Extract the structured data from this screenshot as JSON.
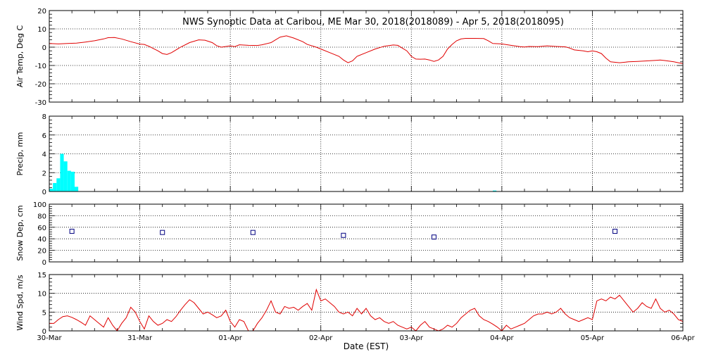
{
  "title": "NWS Synoptic Data at Caribou, ME   Mar 30, 2018(2018089) - Apr  5, 2018(2018095)",
  "xlabel": "Date (EST)",
  "x_ticks": [
    "30-Mar",
    "31-Mar",
    "01-Apr",
    "02-Apr",
    "03-Apr",
    "04-Apr",
    "05-Apr",
    "06-Apr"
  ],
  "colors": {
    "line": "#e00000",
    "bar": "#00ffff",
    "marker": "#000080",
    "axis": "#000000"
  },
  "chart_data": [
    {
      "type": "line",
      "ylabel": "Air Temp, Deg C",
      "ylim": [
        -30,
        20
      ],
      "yticks": [
        -30,
        -20,
        -10,
        0,
        10,
        20
      ],
      "grid": true,
      "x_unit": "days since 30-Mar 00:00 EST",
      "series": [
        {
          "color": "#e00000",
          "points": [
            [
              0.0,
              2.0
            ],
            [
              0.1,
              1.8
            ],
            [
              0.2,
              2.0
            ],
            [
              0.3,
              2.2
            ],
            [
              0.4,
              2.8
            ],
            [
              0.5,
              3.5
            ],
            [
              0.6,
              4.5
            ],
            [
              0.65,
              5.2
            ],
            [
              0.72,
              5.3
            ],
            [
              0.8,
              4.5
            ],
            [
              0.9,
              3.0
            ],
            [
              1.0,
              1.7
            ],
            [
              1.05,
              1.5
            ],
            [
              1.1,
              0.5
            ],
            [
              1.2,
              -2.0
            ],
            [
              1.25,
              -3.5
            ],
            [
              1.3,
              -4.0
            ],
            [
              1.35,
              -3.0
            ],
            [
              1.45,
              0.0
            ],
            [
              1.55,
              2.5
            ],
            [
              1.65,
              4.0
            ],
            [
              1.72,
              3.8
            ],
            [
              1.8,
              2.5
            ],
            [
              1.85,
              0.8
            ],
            [
              1.9,
              0.0
            ],
            [
              2.0,
              0.7
            ],
            [
              2.05,
              0.3
            ],
            [
              2.1,
              1.3
            ],
            [
              2.2,
              1.0
            ],
            [
              2.3,
              0.9
            ],
            [
              2.35,
              1.3
            ],
            [
              2.45,
              2.5
            ],
            [
              2.5,
              4.0
            ],
            [
              2.55,
              5.5
            ],
            [
              2.62,
              6.2
            ],
            [
              2.7,
              5.0
            ],
            [
              2.8,
              3.0
            ],
            [
              2.85,
              1.5
            ],
            [
              2.95,
              0.0
            ],
            [
              3.0,
              -1.0
            ],
            [
              3.1,
              -3.0
            ],
            [
              3.2,
              -5.0
            ],
            [
              3.25,
              -7.0
            ],
            [
              3.3,
              -8.5
            ],
            [
              3.35,
              -7.5
            ],
            [
              3.4,
              -5.0
            ],
            [
              3.5,
              -3.0
            ],
            [
              3.6,
              -1.0
            ],
            [
              3.7,
              0.5
            ],
            [
              3.8,
              1.2
            ],
            [
              3.85,
              1.0
            ],
            [
              3.9,
              -0.5
            ],
            [
              3.95,
              -2.0
            ],
            [
              4.0,
              -5.0
            ],
            [
              4.05,
              -6.5
            ],
            [
              4.1,
              -6.6
            ],
            [
              4.15,
              -6.5
            ],
            [
              4.2,
              -7.0
            ],
            [
              4.25,
              -7.8
            ],
            [
              4.3,
              -7.0
            ],
            [
              4.35,
              -5.0
            ],
            [
              4.4,
              -1.0
            ],
            [
              4.45,
              1.5
            ],
            [
              4.5,
              3.5
            ],
            [
              4.55,
              4.5
            ],
            [
              4.6,
              4.8
            ],
            [
              4.7,
              4.8
            ],
            [
              4.8,
              4.7
            ],
            [
              4.85,
              3.5
            ],
            [
              4.9,
              2.0
            ],
            [
              5.0,
              1.8
            ],
            [
              5.1,
              1.0
            ],
            [
              5.2,
              0.3
            ],
            [
              5.25,
              0.1
            ],
            [
              5.3,
              0.4
            ],
            [
              5.4,
              0.3
            ],
            [
              5.5,
              0.7
            ],
            [
              5.6,
              0.4
            ],
            [
              5.7,
              0.2
            ],
            [
              5.75,
              -0.5
            ],
            [
              5.8,
              -1.5
            ],
            [
              5.9,
              -2.0
            ],
            [
              5.95,
              -2.5
            ],
            [
              6.0,
              -2.0
            ],
            [
              6.05,
              -2.5
            ],
            [
              6.1,
              -3.5
            ],
            [
              6.15,
              -6.0
            ],
            [
              6.2,
              -8.0
            ],
            [
              6.3,
              -8.5
            ],
            [
              6.4,
              -8.0
            ],
            [
              6.5,
              -7.8
            ],
            [
              6.6,
              -7.5
            ],
            [
              6.7,
              -7.2
            ],
            [
              6.75,
              -7.0
            ],
            [
              6.8,
              -7.3
            ],
            [
              6.9,
              -8.0
            ],
            [
              6.95,
              -8.5
            ],
            [
              7.0,
              -9.0
            ]
          ]
        }
      ]
    },
    {
      "type": "bar",
      "ylabel": "Precip, mm",
      "ylim": [
        0,
        8
      ],
      "yticks": [
        0,
        2,
        4,
        6,
        8
      ],
      "grid": true,
      "x_unit": "days since 30-Mar 00:00 EST",
      "bar_width_days": 0.04,
      "bars": [
        [
          0.0,
          0.3
        ],
        [
          0.04,
          0.9
        ],
        [
          0.08,
          1.4
        ],
        [
          0.12,
          4.0
        ],
        [
          0.16,
          3.2
        ],
        [
          0.2,
          2.2
        ],
        [
          0.24,
          2.1
        ],
        [
          0.28,
          0.5
        ],
        [
          4.9,
          0.1
        ]
      ]
    },
    {
      "type": "scatter",
      "ylabel": "Snow Dep, cm",
      "ylim": [
        0,
        100
      ],
      "yticks": [
        0,
        20,
        40,
        60,
        80,
        100
      ],
      "grid": true,
      "x_unit": "days since 30-Mar 00:00 EST",
      "points": [
        [
          0.25,
          53
        ],
        [
          1.25,
          51
        ],
        [
          2.25,
          51
        ],
        [
          3.25,
          46
        ],
        [
          4.25,
          43
        ],
        [
          6.25,
          53
        ]
      ]
    },
    {
      "type": "line",
      "ylabel": "Wind Spd, m/s",
      "ylim": [
        0,
        15
      ],
      "yticks": [
        0,
        5,
        10,
        15
      ],
      "grid": true,
      "x_unit": "days since 30-Mar 00:00 EST",
      "series": [
        {
          "color": "#e00000",
          "points": [
            [
              0.0,
              2.0
            ],
            [
              0.05,
              2.0
            ],
            [
              0.1,
              3.0
            ],
            [
              0.15,
              3.8
            ],
            [
              0.2,
              4.0
            ],
            [
              0.25,
              3.6
            ],
            [
              0.3,
              3.0
            ],
            [
              0.35,
              2.3
            ],
            [
              0.4,
              1.5
            ],
            [
              0.45,
              4.0
            ],
            [
              0.5,
              3.0
            ],
            [
              0.55,
              2.0
            ],
            [
              0.6,
              1.0
            ],
            [
              0.65,
              3.5
            ],
            [
              0.7,
              1.5
            ],
            [
              0.75,
              0.0
            ],
            [
              0.8,
              2.0
            ],
            [
              0.85,
              3.5
            ],
            [
              0.9,
              6.3
            ],
            [
              0.95,
              5.0
            ],
            [
              1.0,
              2.5
            ],
            [
              1.05,
              0.5
            ],
            [
              1.1,
              4.0
            ],
            [
              1.15,
              2.5
            ],
            [
              1.2,
              1.5
            ],
            [
              1.25,
              2.0
            ],
            [
              1.3,
              3.0
            ],
            [
              1.35,
              2.5
            ],
            [
              1.4,
              3.8
            ],
            [
              1.45,
              5.5
            ],
            [
              1.5,
              7.0
            ],
            [
              1.55,
              8.3
            ],
            [
              1.6,
              7.5
            ],
            [
              1.65,
              6.0
            ],
            [
              1.7,
              4.5
            ],
            [
              1.75,
              5.0
            ],
            [
              1.8,
              4.3
            ],
            [
              1.85,
              3.5
            ],
            [
              1.9,
              4.0
            ],
            [
              1.95,
              5.5
            ],
            [
              2.0,
              2.5
            ],
            [
              2.05,
              1.0
            ],
            [
              2.1,
              3.0
            ],
            [
              2.15,
              2.5
            ],
            [
              2.2,
              0.0
            ],
            [
              2.25,
              0.0
            ],
            [
              2.3,
              2.0
            ],
            [
              2.35,
              3.5
            ],
            [
              2.4,
              5.5
            ],
            [
              2.45,
              8.0
            ],
            [
              2.5,
              5.0
            ],
            [
              2.55,
              4.5
            ],
            [
              2.6,
              6.5
            ],
            [
              2.65,
              6.0
            ],
            [
              2.7,
              6.3
            ],
            [
              2.75,
              5.5
            ],
            [
              2.8,
              6.5
            ],
            [
              2.85,
              7.3
            ],
            [
              2.9,
              5.5
            ],
            [
              2.95,
              11.0
            ],
            [
              3.0,
              8.0
            ],
            [
              3.05,
              8.5
            ],
            [
              3.1,
              7.5
            ],
            [
              3.15,
              6.5
            ],
            [
              3.2,
              5.0
            ],
            [
              3.25,
              4.5
            ],
            [
              3.3,
              5.0
            ],
            [
              3.35,
              4.0
            ],
            [
              3.4,
              6.0
            ],
            [
              3.45,
              4.5
            ],
            [
              3.5,
              6.0
            ],
            [
              3.55,
              4.0
            ],
            [
              3.6,
              3.0
            ],
            [
              3.65,
              3.5
            ],
            [
              3.7,
              2.5
            ],
            [
              3.75,
              2.0
            ],
            [
              3.8,
              2.5
            ],
            [
              3.85,
              1.5
            ],
            [
              3.9,
              1.0
            ],
            [
              3.95,
              0.5
            ],
            [
              4.0,
              1.0
            ],
            [
              4.05,
              0.0
            ],
            [
              4.1,
              1.5
            ],
            [
              4.15,
              2.5
            ],
            [
              4.2,
              1.0
            ],
            [
              4.25,
              0.5
            ],
            [
              4.3,
              0.0
            ],
            [
              4.35,
              0.5
            ],
            [
              4.4,
              1.5
            ],
            [
              4.45,
              1.0
            ],
            [
              4.5,
              2.0
            ],
            [
              4.55,
              3.5
            ],
            [
              4.6,
              4.5
            ],
            [
              4.65,
              5.5
            ],
            [
              4.7,
              6.0
            ],
            [
              4.75,
              4.0
            ],
            [
              4.8,
              3.0
            ],
            [
              4.85,
              2.5
            ],
            [
              4.9,
              1.8
            ],
            [
              4.95,
              1.0
            ],
            [
              5.0,
              0.0
            ],
            [
              5.05,
              1.5
            ],
            [
              5.1,
              0.5
            ],
            [
              5.15,
              1.0
            ],
            [
              5.2,
              1.5
            ],
            [
              5.25,
              2.0
            ],
            [
              5.3,
              3.0
            ],
            [
              5.35,
              4.0
            ],
            [
              5.4,
              4.5
            ],
            [
              5.45,
              4.5
            ],
            [
              5.5,
              5.0
            ],
            [
              5.55,
              4.5
            ],
            [
              5.6,
              5.0
            ],
            [
              5.65,
              6.0
            ],
            [
              5.7,
              4.5
            ],
            [
              5.75,
              3.5
            ],
            [
              5.8,
              3.0
            ],
            [
              5.85,
              2.5
            ],
            [
              5.9,
              3.0
            ],
            [
              5.95,
              3.5
            ],
            [
              6.0,
              3.0
            ],
            [
              6.05,
              8.0
            ],
            [
              6.1,
              8.5
            ],
            [
              6.15,
              8.0
            ],
            [
              6.2,
              9.0
            ],
            [
              6.25,
              8.5
            ],
            [
              6.3,
              9.5
            ],
            [
              6.35,
              8.0
            ],
            [
              6.4,
              6.5
            ],
            [
              6.45,
              5.0
            ],
            [
              6.5,
              6.0
            ],
            [
              6.55,
              7.5
            ],
            [
              6.6,
              6.5
            ],
            [
              6.65,
              6.0
            ],
            [
              6.7,
              8.5
            ],
            [
              6.75,
              6.0
            ],
            [
              6.8,
              5.0
            ],
            [
              6.85,
              5.5
            ],
            [
              6.9,
              4.5
            ],
            [
              6.95,
              3.0
            ],
            [
              7.0,
              2.5
            ]
          ]
        }
      ]
    }
  ]
}
